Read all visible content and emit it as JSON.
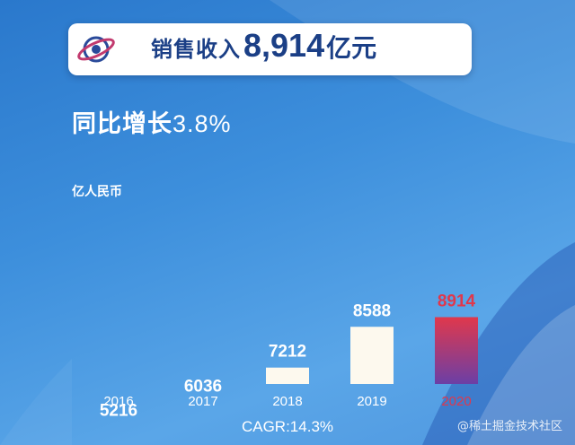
{
  "header": {
    "title_prefix": "销售收入",
    "title_value": "8,914",
    "title_unit": "亿元"
  },
  "growth": {
    "label": "同比增长",
    "value": "3.8%"
  },
  "chart_data": {
    "type": "bar",
    "categories": [
      "2016",
      "2017",
      "2018",
      "2019",
      "2020"
    ],
    "values": [
      5216,
      6036,
      7212,
      8588,
      8914
    ],
    "ylabel": "亿人民币",
    "ylim": [
      0,
      10000
    ],
    "grid": false,
    "highlight_index": 4,
    "colors": {
      "bar": "#fdf9ee",
      "highlight_top": "#e0384c",
      "highlight_bottom": "#6b3fa6",
      "label": "#ffffff",
      "highlight_label": "#e0384c",
      "tick": "#ffffff",
      "highlight_tick": "#e0384c"
    }
  },
  "footer": {
    "cagr": "CAGR:14.3%"
  },
  "watermark": "@稀土掘金技术社区",
  "theme": {
    "title_color": "#1b3f86",
    "background": "#3d8fdc"
  }
}
